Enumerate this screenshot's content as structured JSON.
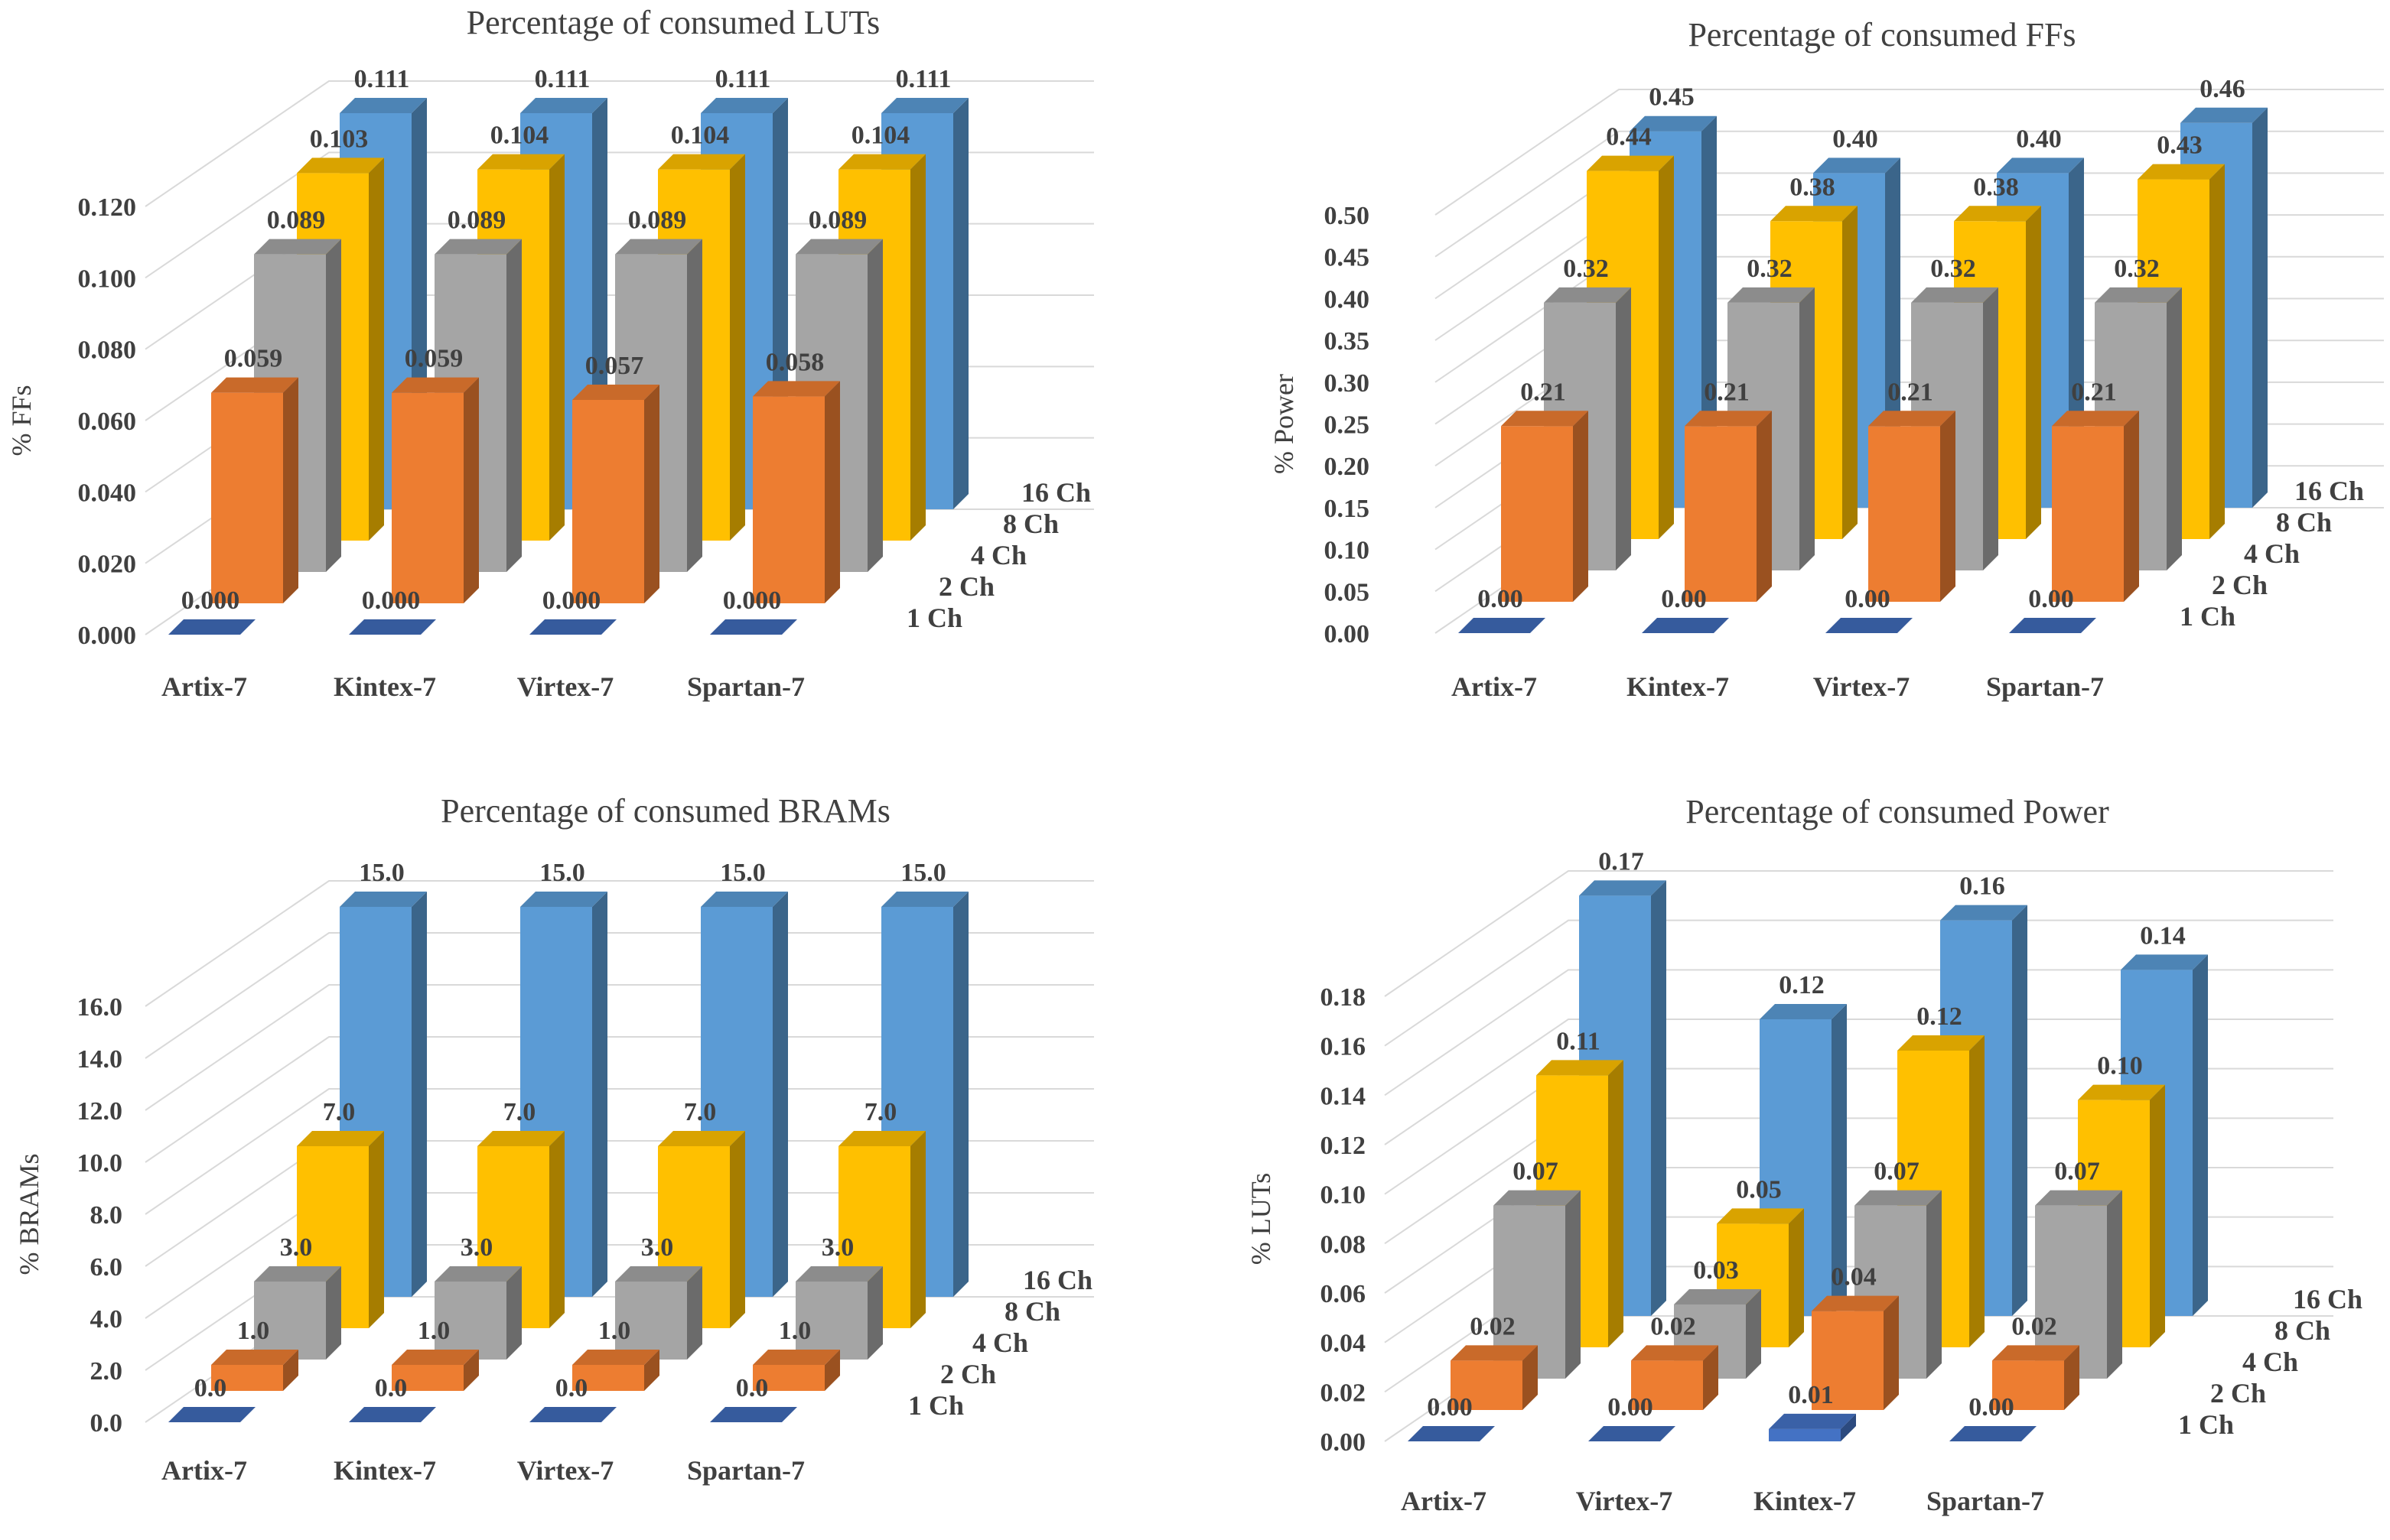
{
  "chart_data": [
    {
      "type": "bar",
      "title": "Percentage of consumed LUTs",
      "ylabel": "% FFs",
      "categories": [
        "Artix-7",
        "Kintex-7",
        "Virtex-7",
        "Spartan-7"
      ],
      "series_names": [
        "1 Ch",
        "2 Ch",
        "4 Ch",
        "8 Ch",
        "16 Ch"
      ],
      "ylim": [
        0,
        0.12
      ],
      "ticks": [
        "0.000",
        "0.020",
        "0.040",
        "0.060",
        "0.080",
        "0.100",
        "0.120"
      ],
      "series": [
        {
          "name": "1 Ch",
          "values": [
            0.0,
            0.0,
            0.0,
            0.0
          ],
          "labels": [
            "0.000",
            "0.000",
            "0.000",
            "0.000"
          ]
        },
        {
          "name": "2 Ch",
          "values": [
            0.059,
            0.059,
            0.057,
            0.058
          ],
          "labels": [
            "0.059",
            "0.059",
            "0.057",
            "0.058"
          ]
        },
        {
          "name": "4 Ch",
          "values": [
            0.089,
            0.089,
            0.089,
            0.089
          ],
          "labels": [
            "0.089",
            "0.089",
            "0.089",
            "0.089"
          ]
        },
        {
          "name": "8 Ch",
          "values": [
            0.103,
            0.104,
            0.104,
            0.104
          ],
          "labels": [
            "0.103",
            "0.104",
            "0.104",
            "0.104"
          ]
        },
        {
          "name": "16 Ch",
          "values": [
            0.111,
            0.111,
            0.111,
            0.111
          ],
          "labels": [
            "0.111",
            "0.111",
            "0.111",
            "0.111"
          ]
        }
      ]
    },
    {
      "type": "bar",
      "title": "Percentage of consumed FFs",
      "ylabel": "% Power",
      "categories": [
        "Artix-7",
        "Kintex-7",
        "Virtex-7",
        "Spartan-7"
      ],
      "series_names": [
        "1 Ch",
        "2 Ch",
        "4 Ch",
        "8 Ch",
        "16 Ch"
      ],
      "ylim": [
        0,
        0.5
      ],
      "ticks": [
        "0.00",
        "0.05",
        "0.10",
        "0.15",
        "0.20",
        "0.25",
        "0.30",
        "0.35",
        "0.40",
        "0.45",
        "0.50"
      ],
      "series": [
        {
          "name": "1 Ch",
          "values": [
            0.0,
            0.0,
            0.0,
            0.0
          ],
          "labels": [
            "0.00",
            "0.00",
            "0.00",
            "0.00"
          ]
        },
        {
          "name": "2 Ch",
          "values": [
            0.21,
            0.21,
            0.21,
            0.21
          ],
          "labels": [
            "0.21",
            "0.21",
            "0.21",
            "0.21"
          ]
        },
        {
          "name": "4 Ch",
          "values": [
            0.32,
            0.32,
            0.32,
            0.32
          ],
          "labels": [
            "0.32",
            "0.32",
            "0.32",
            "0.32"
          ]
        },
        {
          "name": "8 Ch",
          "values": [
            0.44,
            0.38,
            0.38,
            0.43
          ],
          "labels": [
            "0.44",
            "0.38",
            "0.38",
            "0.43"
          ]
        },
        {
          "name": "16 Ch",
          "values": [
            0.45,
            0.4,
            0.4,
            0.46
          ],
          "labels": [
            "0.45",
            "0.40",
            "0.40",
            "0.46"
          ]
        }
      ]
    },
    {
      "type": "bar",
      "title": "Percentage of consumed BRAMs",
      "ylabel": "% BRAMs",
      "categories": [
        "Artix-7",
        "Kintex-7",
        "Virtex-7",
        "Spartan-7"
      ],
      "series_names": [
        "1 Ch",
        "2 Ch",
        "4 Ch",
        "8 Ch",
        "16 Ch"
      ],
      "ylim": [
        0,
        16
      ],
      "ticks": [
        "0.0",
        "2.0",
        "4.0",
        "6.0",
        "8.0",
        "10.0",
        "12.0",
        "14.0",
        "16.0"
      ],
      "series": [
        {
          "name": "1 Ch",
          "values": [
            0.0,
            0.0,
            0.0,
            0.0
          ],
          "labels": [
            "0.0",
            "0.0",
            "0.0",
            "0.0"
          ]
        },
        {
          "name": "2 Ch",
          "values": [
            1.0,
            1.0,
            1.0,
            1.0
          ],
          "labels": [
            "1.0",
            "1.0",
            "1.0",
            "1.0"
          ]
        },
        {
          "name": "4 Ch",
          "values": [
            3.0,
            3.0,
            3.0,
            3.0
          ],
          "labels": [
            "3.0",
            "3.0",
            "3.0",
            "3.0"
          ]
        },
        {
          "name": "8 Ch",
          "values": [
            7.0,
            7.0,
            7.0,
            7.0
          ],
          "labels": [
            "7.0",
            "7.0",
            "7.0",
            "7.0"
          ]
        },
        {
          "name": "16 Ch",
          "values": [
            15.0,
            15.0,
            15.0,
            15.0
          ],
          "labels": [
            "15.0",
            "15.0",
            "15.0",
            "15.0"
          ]
        }
      ]
    },
    {
      "type": "bar",
      "title": "Percentage of consumed Power",
      "ylabel": "% LUTs",
      "categories": [
        "Artix-7",
        "Virtex-7",
        "Kintex-7",
        "Spartan-7"
      ],
      "series_names": [
        "1 Ch",
        "2 Ch",
        "4 Ch",
        "8 Ch",
        "16 Ch"
      ],
      "ylim": [
        0,
        0.18
      ],
      "ticks": [
        "0.00",
        "0.02",
        "0.04",
        "0.06",
        "0.08",
        "0.10",
        "0.12",
        "0.14",
        "0.16",
        "0.18"
      ],
      "series": [
        {
          "name": "1 Ch",
          "values": [
            0.0,
            0.0,
            0.005,
            0.0
          ],
          "labels": [
            "0.00",
            "0.00",
            "0.01",
            "0.00"
          ]
        },
        {
          "name": "2 Ch",
          "values": [
            0.02,
            0.02,
            0.04,
            0.02
          ],
          "labels": [
            "0.02",
            "0.02",
            "0.04",
            "0.02"
          ]
        },
        {
          "name": "4 Ch",
          "values": [
            0.07,
            0.03,
            0.07,
            0.07
          ],
          "labels": [
            "0.07",
            "0.03",
            "0.07",
            "0.07"
          ]
        },
        {
          "name": "8 Ch",
          "values": [
            0.11,
            0.05,
            0.12,
            0.1
          ],
          "labels": [
            "0.11",
            "0.05",
            "0.12",
            "0.10"
          ]
        },
        {
          "name": "16 Ch",
          "values": [
            0.17,
            0.12,
            0.16,
            0.14
          ],
          "labels": [
            "0.17",
            "0.12",
            "0.16",
            "0.14"
          ]
        }
      ]
    }
  ],
  "colors": {
    "1 Ch": "#4472c4",
    "2 Ch": "#ed7d31",
    "4 Ch": "#a5a5a5",
    "8 Ch": "#ffc000",
    "16 Ch": "#5b9bd5",
    "grid": "#d9d9d9",
    "text": "#404040"
  }
}
